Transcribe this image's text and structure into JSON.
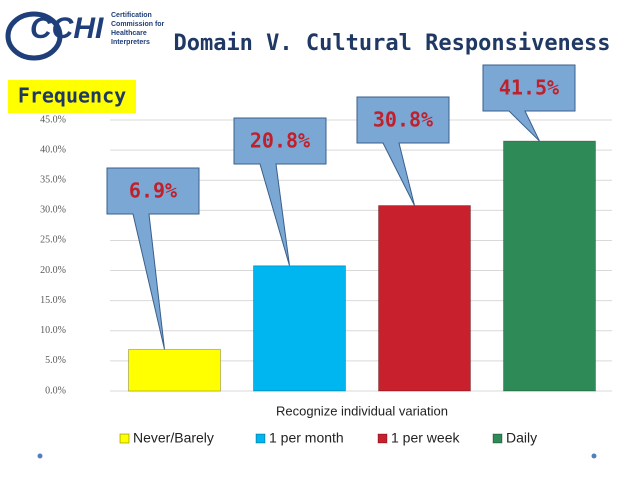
{
  "logo": {
    "abbr": "CCHI",
    "lines": [
      "Certification",
      "Commission for",
      "Healthcare",
      "Interpreters"
    ]
  },
  "chart_data": {
    "type": "bar",
    "title": "Domain V. Cultural Responsiveness",
    "y_label": "Frequency",
    "categories": [
      "Recognize individual variation"
    ],
    "series": [
      {
        "name": "Never/Barely",
        "color": "#ffff00",
        "values": [
          6.9
        ],
        "value_labels": [
          "6.9%"
        ]
      },
      {
        "name": "1 per month",
        "color": "#00b6f0",
        "values": [
          20.8
        ],
        "value_labels": [
          "20.8%"
        ]
      },
      {
        "name": "1 per week",
        "color": "#c8202c",
        "values": [
          30.8
        ],
        "value_labels": [
          "30.8%"
        ]
      },
      {
        "name": "Daily",
        "color": "#2e8b57",
        "values": [
          41.5
        ],
        "value_labels": [
          "41.5%"
        ]
      }
    ],
    "ylim": [
      0,
      45
    ],
    "yticks": [
      {
        "value": 0,
        "label": "0.0%"
      },
      {
        "value": 5,
        "label": "5.0%"
      },
      {
        "value": 10,
        "label": "10.0%"
      },
      {
        "value": 15,
        "label": "15.0%"
      },
      {
        "value": 20,
        "label": "20.0%"
      },
      {
        "value": 25,
        "label": "25.0%"
      },
      {
        "value": 30,
        "label": "30.0%"
      },
      {
        "value": 35,
        "label": "35.0%"
      },
      {
        "value": 40,
        "label": "40.0%"
      },
      {
        "value": 45,
        "label": "45.0%"
      }
    ],
    "grid": true
  }
}
